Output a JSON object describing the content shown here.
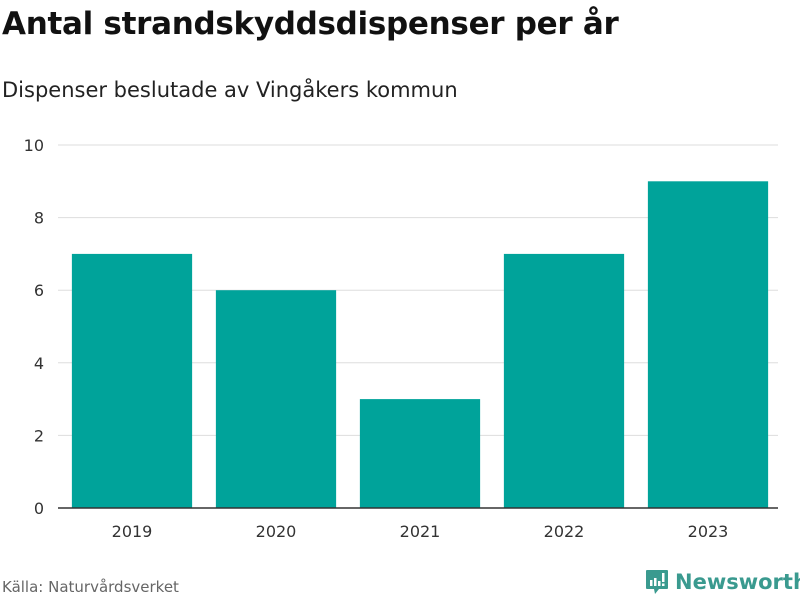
{
  "header": {
    "title": "Antal strandskyddsdispenser per år",
    "subtitle": "Dispenser beslutade av Vingåkers kommun"
  },
  "footer": {
    "source": "Källa: Naturvårdsverket",
    "logo_text": "Newsworthy"
  },
  "colors": {
    "bar": "#00a39a",
    "grid": "#dddddd",
    "axis": "#333333",
    "logo": "#3a9a8f"
  },
  "chart_data": {
    "type": "bar",
    "title": "Antal strandskyddsdispenser per år",
    "subtitle": "Dispenser beslutade av Vingåkers kommun",
    "categories": [
      "2019",
      "2020",
      "2021",
      "2022",
      "2023"
    ],
    "values": [
      7,
      6,
      3,
      7,
      9
    ],
    "xlabel": "",
    "ylabel": "",
    "ylim": [
      0,
      10
    ],
    "yticks": [
      0,
      2,
      4,
      6,
      8,
      10
    ],
    "grid": true,
    "legend": "none"
  }
}
